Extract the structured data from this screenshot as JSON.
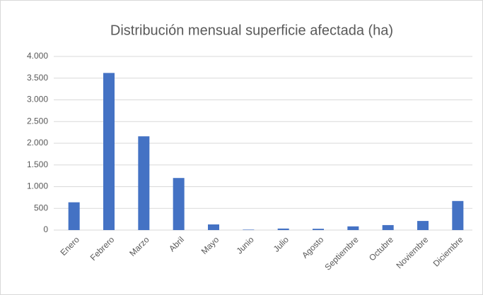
{
  "chart_data": {
    "type": "bar",
    "title": "Distribución mensual superficie afectada (ha)",
    "categories": [
      "Enero",
      "Febrero",
      "Marzo",
      "Abril",
      "Mayo",
      "Junio",
      "Julio",
      "Agosto",
      "Septiembre",
      "Octubre",
      "Noviembre",
      "Diciembre"
    ],
    "values": [
      640,
      3620,
      2160,
      1200,
      130,
      10,
      35,
      30,
      85,
      115,
      210,
      670
    ],
    "color": "#4472c4",
    "ylim": [
      0,
      4000
    ],
    "yticks": [
      0,
      500,
      {
        "value": 1000,
        "label": "1.000"
      },
      {
        "value": 1500,
        "label": "1.500"
      },
      {
        "value": 2000,
        "label": "2.000"
      },
      {
        "value": 2500,
        "label": "2.500"
      },
      {
        "value": 3000,
        "label": "3.000"
      },
      {
        "value": 3500,
        "label": "3.500"
      },
      {
        "value": 4000,
        "label": "4.000"
      }
    ],
    "grid": true
  }
}
